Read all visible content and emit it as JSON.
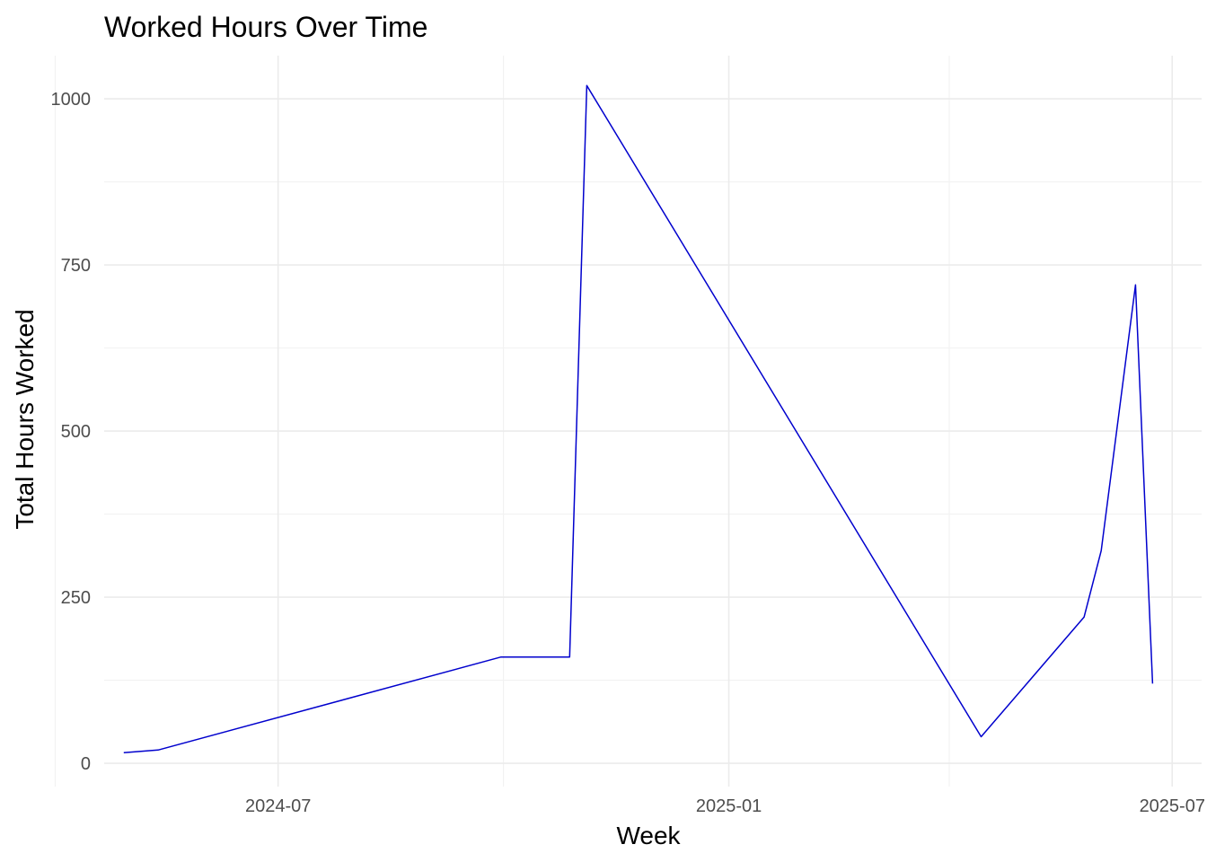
{
  "chart_data": {
    "type": "line",
    "title": "Worked Hours Over Time",
    "xlabel": "Week",
    "ylabel": "Total Hours Worked",
    "x_type": "date",
    "xlim": [
      "2024-04-21",
      "2025-07-13"
    ],
    "ylim": [
      -35,
      1065
    ],
    "x_ticks": [
      {
        "value": "2024-07-01",
        "label": "2024-07"
      },
      {
        "value": "2025-01-01",
        "label": "2025-01"
      },
      {
        "value": "2025-07-01",
        "label": "2025-07"
      }
    ],
    "y_ticks": [
      {
        "value": 0,
        "label": "0"
      },
      {
        "value": 250,
        "label": "250"
      },
      {
        "value": 500,
        "label": "500"
      },
      {
        "value": 750,
        "label": "750"
      },
      {
        "value": 1000,
        "label": "1000"
      }
    ],
    "x_minor_ticks": [
      "2024-04-01",
      "2024-10-01",
      "2025-04-01"
    ],
    "y_minor_ticks": [
      125,
      375,
      625,
      875
    ],
    "grid": true,
    "legend": "none",
    "series": [
      {
        "color": "#0000CD",
        "points": [
          {
            "x": "2024-04-29",
            "y": 16
          },
          {
            "x": "2024-05-13",
            "y": 20
          },
          {
            "x": "2024-09-30",
            "y": 160
          },
          {
            "x": "2024-10-28",
            "y": 160
          },
          {
            "x": "2024-11-04",
            "y": 1020
          },
          {
            "x": "2025-04-14",
            "y": 40
          },
          {
            "x": "2025-05-26",
            "y": 220
          },
          {
            "x": "2025-06-02",
            "y": 320
          },
          {
            "x": "2025-06-16",
            "y": 720
          },
          {
            "x": "2025-06-23",
            "y": 120
          }
        ]
      }
    ]
  }
}
